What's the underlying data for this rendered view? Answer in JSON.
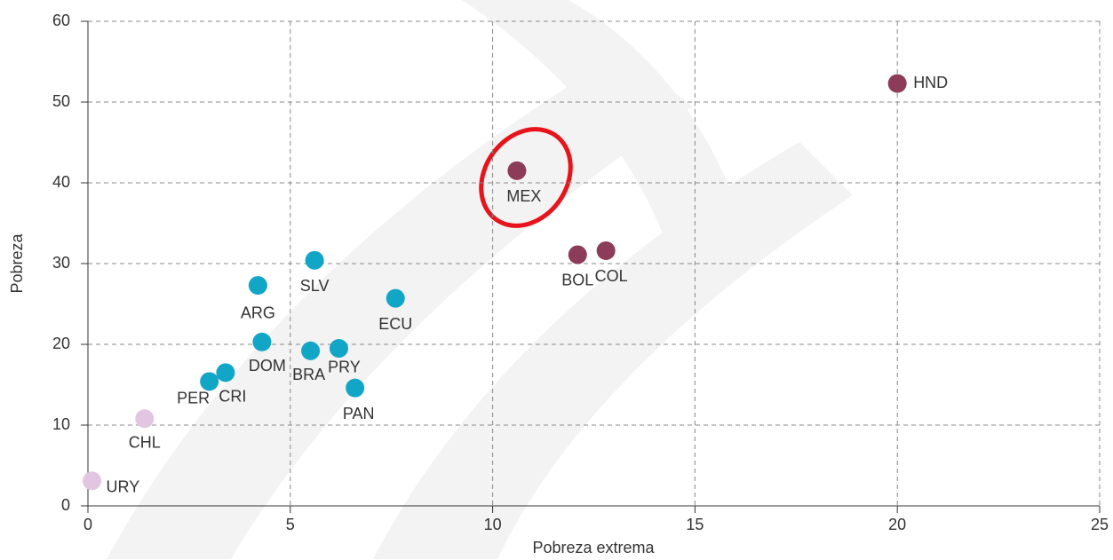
{
  "chart_data": {
    "type": "scatter",
    "x_label": "Pobreza extrema",
    "y_label": "Pobreza",
    "xlim": [
      0,
      25
    ],
    "xticks": [
      0,
      5,
      10,
      15,
      20,
      25
    ],
    "ylim": [
      0,
      60
    ],
    "yticks": [
      0,
      10,
      20,
      30,
      40,
      50,
      60
    ],
    "grid": true,
    "series": [
      {
        "color": "#12a6c6",
        "labels": [
          "ARG",
          "BRA",
          "CRI",
          "DOM",
          "ECU",
          "PAN",
          "PER",
          "PRY",
          "SLV"
        ],
        "x": [
          4.2,
          5.5,
          3.4,
          4.3,
          7.6,
          6.6,
          3.0,
          6.2,
          5.6
        ],
        "values": [
          27.3,
          19.2,
          16.5,
          20.3,
          25.7,
          14.6,
          15.4,
          19.5,
          30.4
        ]
      },
      {
        "color": "#8c3b58",
        "labels": [
          "BOL",
          "COL",
          "HND",
          "MEX"
        ],
        "x": [
          12.1,
          12.8,
          20.0,
          10.6
        ],
        "values": [
          31.1,
          31.6,
          52.3,
          41.5
        ]
      },
      {
        "color": "#e2c6e1",
        "labels": [
          "CHL",
          "URY"
        ],
        "x": [
          1.4,
          0.1
        ],
        "values": [
          10.8,
          3.1
        ]
      }
    ]
  }
}
